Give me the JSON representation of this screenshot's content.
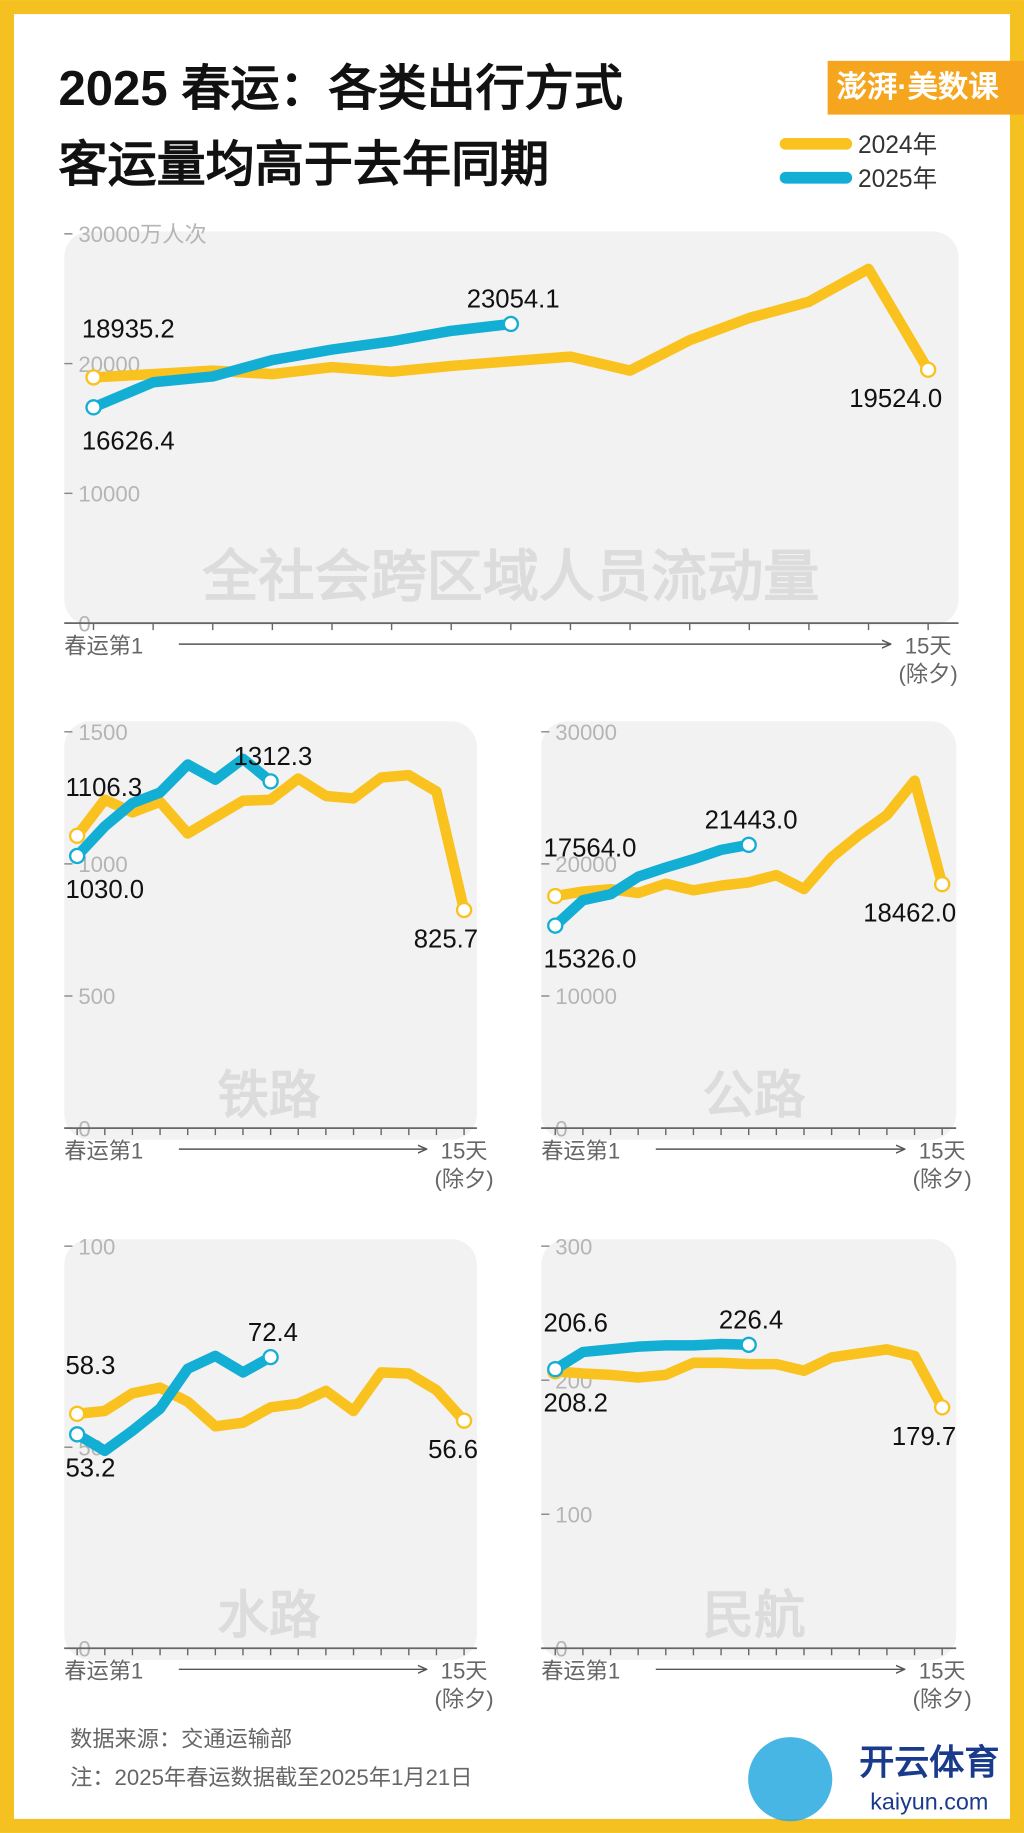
{
  "title": [
    "2025 春运：各类出行方式",
    "客运量均高于去年同期"
  ],
  "logo": "澎湃·美数课",
  "source": "数据来源：交通运输部",
  "note": "注：2025年春运数据截至2025年1月21日",
  "watermark": {
    "name": "开云体育",
    "url": "kaiyun.com"
  },
  "chart_data": [
    {
      "type": "line",
      "annotation": "全社会跨区域人员流动量",
      "categories": [
        "春运第1",
        null,
        null,
        null,
        null,
        null,
        null,
        null,
        null,
        null,
        null,
        null,
        null,
        null,
        "15天(除夕)"
      ],
      "ylim": [
        0,
        30000
      ],
      "yticks": [
        0,
        10000,
        20000,
        {
          "value": 30000,
          "label": "30000万人次"
        }
      ],
      "series": [
        {
          "name": "2024年",
          "color": "#f9c21e",
          "values": [
            18935.2,
            19190,
            19460,
            19190,
            19730,
            19370,
            19820,
            20180,
            20540,
            19460,
            21800,
            23510,
            24770,
            27300,
            19524.0
          ],
          "value_labels": [
            "18935.2",
            null,
            null,
            null,
            null,
            null,
            null,
            null,
            null,
            null,
            null,
            null,
            null,
            null,
            "19524.0"
          ]
        },
        {
          "name": "2025年",
          "color": "#12aed4",
          "values": [
            16626.4,
            18560,
            19010,
            20270,
            21080,
            21710,
            22520,
            23054.1,
            null,
            null,
            null,
            null,
            null,
            null,
            null
          ],
          "value_labels": [
            "16626.4",
            null,
            null,
            null,
            null,
            null,
            null,
            "23054.1",
            null,
            null,
            null,
            null,
            null,
            null,
            null
          ]
        }
      ]
    },
    {
      "type": "line",
      "annotation": "铁路",
      "categories": [
        "春运第1",
        null,
        null,
        null,
        null,
        null,
        null,
        null,
        null,
        null,
        null,
        null,
        null,
        null,
        "15天(除夕)"
      ],
      "ylim": [
        0,
        1500
      ],
      "yticks": [
        0,
        500,
        1000,
        1500
      ],
      "series": [
        {
          "name": "2024年",
          "color": "#f9c21e",
          "values": [
            1106.3,
            1243,
            1195,
            1235,
            1115,
            1177,
            1239,
            1243,
            1323,
            1257,
            1248,
            1327,
            1336,
            1274,
            825.7
          ],
          "value_labels": [
            "1106.3",
            null,
            null,
            null,
            null,
            null,
            null,
            null,
            null,
            null,
            null,
            null,
            null,
            null,
            "825.7"
          ]
        },
        {
          "name": "2025年",
          "color": "#12aed4",
          "values": [
            1030.0,
            1142,
            1230,
            1270,
            1376,
            1319,
            1398,
            1312.3,
            null,
            null,
            null,
            null,
            null,
            null,
            null
          ],
          "value_labels": [
            "1030.0",
            null,
            null,
            null,
            null,
            null,
            null,
            "1312.3",
            null,
            null,
            null,
            null,
            null,
            null,
            null
          ]
        }
      ]
    },
    {
      "type": "line",
      "annotation": "公路",
      "categories": [
        "春运第1",
        null,
        null,
        null,
        null,
        null,
        null,
        null,
        null,
        null,
        null,
        null,
        null,
        null,
        "15天(除夕)"
      ],
      "ylim": [
        0,
        30000
      ],
      "yticks": [
        0,
        10000,
        20000,
        30000
      ],
      "series": [
        {
          "name": "2024年",
          "color": "#f9c21e",
          "values": [
            17564.0,
            17900,
            18080,
            17800,
            18500,
            18000,
            18350,
            18600,
            19150,
            18100,
            20500,
            22200,
            23700,
            26300,
            18462.0
          ],
          "value_labels": [
            "17564.0",
            null,
            null,
            null,
            null,
            null,
            null,
            null,
            null,
            null,
            null,
            null,
            null,
            null,
            "18462.0"
          ]
        },
        {
          "name": "2025年",
          "color": "#12aed4",
          "values": [
            15326.0,
            17250,
            17700,
            19030,
            19730,
            20350,
            21060,
            21443.0,
            null,
            null,
            null,
            null,
            null,
            null,
            null
          ],
          "value_labels": [
            "15326.0",
            null,
            null,
            null,
            null,
            null,
            null,
            "21443.0",
            null,
            null,
            null,
            null,
            null,
            null,
            null
          ]
        }
      ]
    },
    {
      "type": "line",
      "annotation": "水路",
      "categories": [
        "春运第1",
        null,
        null,
        null,
        null,
        null,
        null,
        null,
        null,
        null,
        null,
        null,
        null,
        null,
        "15天(除夕)"
      ],
      "ylim": [
        0,
        100
      ],
      "yticks": [
        0,
        50,
        100
      ],
      "series": [
        {
          "name": "2024年",
          "color": "#f9c21e",
          "values": [
            58.3,
            59,
            63.4,
            64.8,
            61.3,
            55.2,
            56.1,
            59.9,
            60.8,
            64,
            59,
            68.6,
            68.3,
            64.2,
            56.6
          ],
          "value_labels": [
            "58.3",
            null,
            null,
            null,
            null,
            null,
            null,
            null,
            null,
            null,
            null,
            null,
            null,
            null,
            "56.6"
          ]
        },
        {
          "name": "2025年",
          "color": "#12aed4",
          "values": [
            53.2,
            49.1,
            54.1,
            59.6,
            69.5,
            72.7,
            68.6,
            72.4,
            null,
            null,
            null,
            null,
            null,
            null,
            null
          ],
          "value_labels": [
            "53.2",
            null,
            null,
            null,
            null,
            null,
            null,
            "72.4",
            null,
            null,
            null,
            null,
            null,
            null,
            null
          ]
        }
      ]
    },
    {
      "type": "line",
      "annotation": "民航",
      "categories": [
        "春运第1",
        null,
        null,
        null,
        null,
        null,
        null,
        null,
        null,
        null,
        null,
        null,
        null,
        null,
        "15天(除夕)"
      ],
      "ylim": [
        0,
        300
      ],
      "yticks": [
        0,
        100,
        200,
        300
      ],
      "series": [
        {
          "name": "2024年",
          "color": "#f9c21e",
          "values": [
            206.6,
            205,
            204,
            202,
            204,
            213,
            213,
            212,
            212,
            207,
            217,
            220,
            223,
            218,
            179.7
          ],
          "value_labels": [
            "206.6",
            null,
            null,
            null,
            null,
            null,
            null,
            null,
            null,
            null,
            null,
            null,
            null,
            null,
            "179.7"
          ]
        },
        {
          "name": "2025年",
          "color": "#12aed4",
          "values": [
            208.2,
            221,
            223,
            225,
            226,
            226,
            227,
            226.4,
            null,
            null,
            null,
            null,
            null,
            null,
            null
          ],
          "value_labels": [
            "208.2",
            null,
            null,
            null,
            null,
            null,
            null,
            "226.4",
            null,
            null,
            null,
            null,
            null,
            null,
            null
          ]
        }
      ]
    }
  ]
}
